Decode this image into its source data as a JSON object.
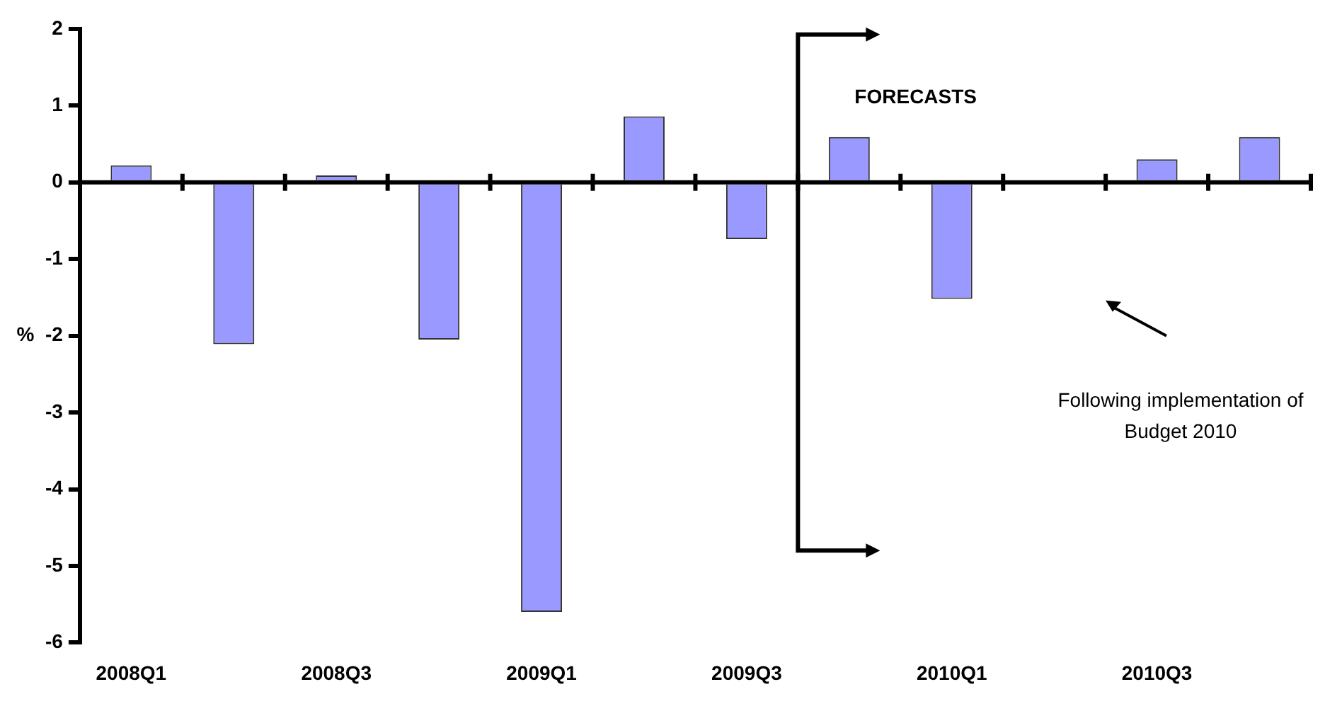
{
  "chart_data": {
    "type": "bar",
    "ylabel": "%",
    "categories": [
      "2008Q1",
      null,
      "2008Q3",
      null,
      "2009Q1",
      null,
      "2009Q3",
      null,
      "2010Q1",
      null,
      "2010Q3",
      null
    ],
    "values": [
      0.22,
      -2.11,
      0.09,
      -2.05,
      -5.6,
      0.86,
      -0.74,
      0.59,
      -1.52,
      0,
      0.3,
      0.59
    ],
    "color": "#9999ff",
    "ylim": [
      -6,
      2
    ],
    "yticks": [
      -6,
      -5,
      -4,
      -3,
      -2,
      -1,
      0,
      1,
      2
    ],
    "annotations": [
      "FORECASTS",
      "Following implementation of Budget 2010"
    ]
  }
}
